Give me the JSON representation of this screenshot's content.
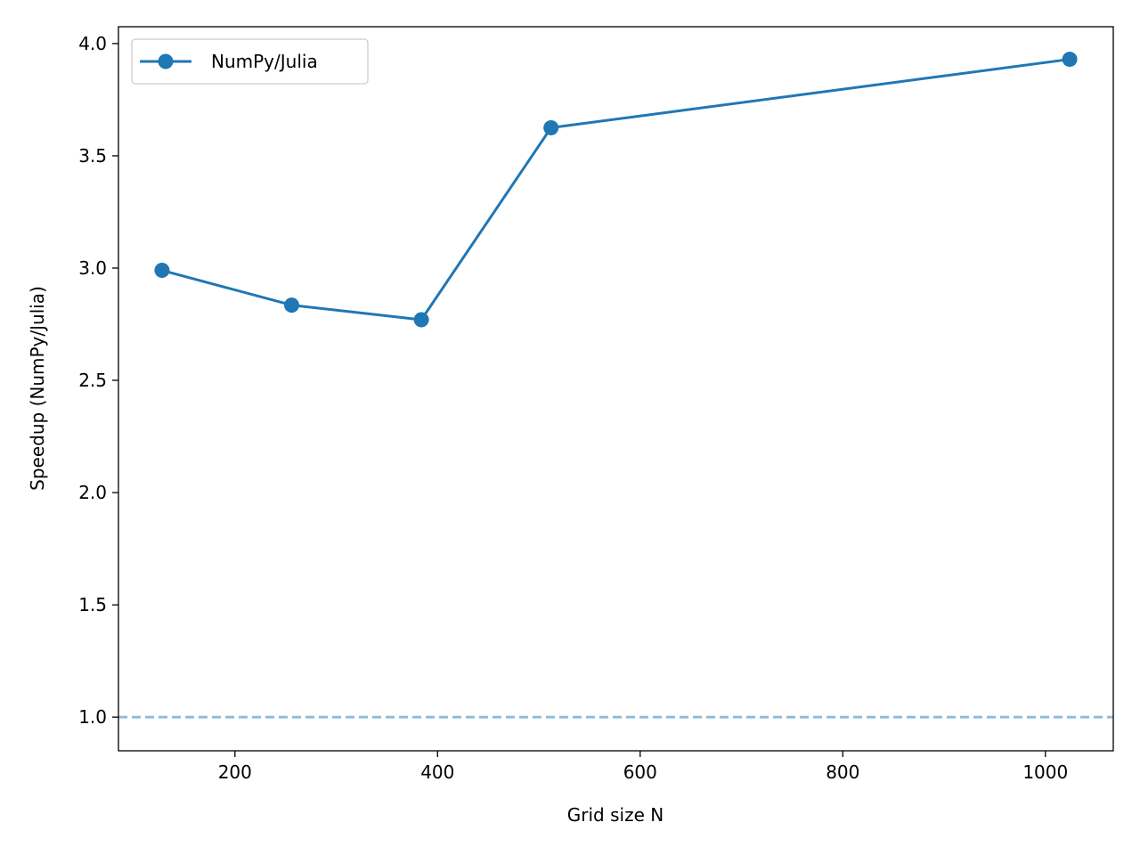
{
  "chart_data": {
    "type": "line",
    "title": "",
    "xlabel": "Grid size N",
    "ylabel": "Speedup (NumPy/Julia)",
    "xlim": [
      85,
      1067
    ],
    "ylim": [
      0.85,
      4.075
    ],
    "x_ticks": [
      200,
      400,
      600,
      800,
      1000
    ],
    "y_ticks": [
      1.0,
      1.5,
      2.0,
      2.5,
      3.0,
      3.5,
      4.0
    ],
    "x_tick_labels": [
      "200",
      "400",
      "600",
      "800",
      "1000"
    ],
    "y_tick_labels": [
      "1.0",
      "1.5",
      "2.0",
      "2.5",
      "3.0",
      "3.5",
      "4.0"
    ],
    "series": [
      {
        "name": "NumPy/Julia",
        "color": "#1f77b4",
        "marker": "circle",
        "x": [
          128,
          256,
          384,
          512,
          1024
        ],
        "y": [
          2.99,
          2.835,
          2.77,
          3.625,
          3.93
        ]
      }
    ],
    "reference_line": {
      "y": 1.0,
      "style": "dashed",
      "color": "#1f77b4",
      "opacity": 0.5
    },
    "legend": {
      "position": "top-left"
    },
    "grid": false
  }
}
